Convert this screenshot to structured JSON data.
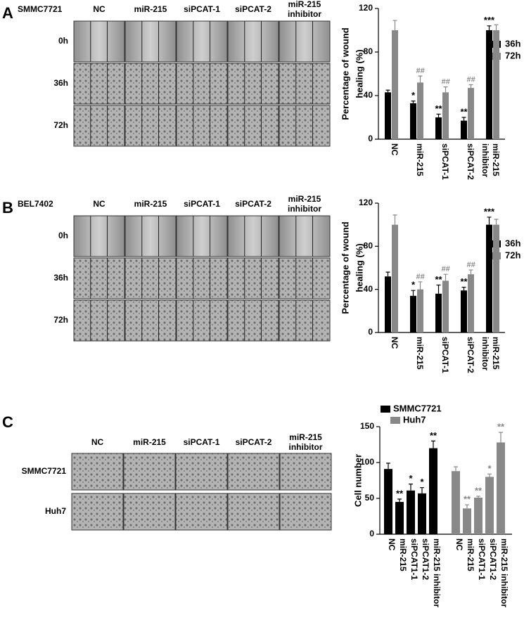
{
  "panels": [
    {
      "letter": "A",
      "cell_line": "SMMC7721",
      "columns": [
        "NC",
        "miR-215",
        "siPCAT-1",
        "siPCAT-2",
        [
          "miR-215",
          "inhibitor"
        ]
      ],
      "rows": [
        "0h",
        "36h",
        "72h"
      ]
    },
    {
      "letter": "B",
      "cell_line": "BEL7402",
      "columns": [
        "NC",
        "miR-215",
        "siPCAT-1",
        "siPCAT-2",
        [
          "miR-215",
          "inhibitor"
        ]
      ],
      "rows": [
        "0h",
        "36h",
        "72h"
      ]
    },
    {
      "letter": "C",
      "columns": [
        "NC",
        "miR-215",
        "siPCAT-1",
        "siPCAT-2",
        [
          "miR-215",
          "inhibitor"
        ]
      ],
      "rows": [
        "SMMC7721",
        "Huh7"
      ]
    }
  ],
  "chart_data": [
    {
      "type": "grouped_bar",
      "ylabel": [
        "Percentage of wound",
        "healing (%)"
      ],
      "categories": [
        "NC",
        "miR-215",
        "siPCAT-1",
        "siPCAT-2",
        [
          "miR-215",
          "inhibitor"
        ]
      ],
      "series": [
        {
          "name": "36h",
          "color": "#000000",
          "values": [
            43,
            33,
            20,
            17,
            100
          ],
          "errors": [
            2,
            2,
            3,
            3,
            4
          ],
          "annotations": [
            null,
            "*",
            "**",
            "**",
            "***"
          ]
        },
        {
          "name": "72h",
          "color": "#888888",
          "values": [
            100,
            52,
            43,
            47,
            100
          ],
          "errors": [
            9,
            6,
            5,
            3,
            5
          ],
          "annotations": [
            null,
            "##",
            "##",
            "##",
            null
          ]
        }
      ],
      "ylim": [
        0,
        120
      ],
      "yticks": [
        0,
        40,
        80,
        120
      ]
    },
    {
      "type": "grouped_bar",
      "ylabel": [
        "Percentage of wound",
        "healing (%)"
      ],
      "categories": [
        "NC",
        "miR-215",
        "siPCAT-1",
        "siPCAT-2",
        [
          "miR-215",
          "inhibitor"
        ]
      ],
      "series": [
        {
          "name": "36h",
          "color": "#000000",
          "values": [
            52,
            34,
            36,
            39,
            100
          ],
          "errors": [
            4,
            5,
            8,
            3,
            7
          ],
          "annotations": [
            null,
            "*",
            "**",
            "**",
            "***"
          ]
        },
        {
          "name": "72h",
          "color": "#888888",
          "values": [
            100,
            40,
            48,
            54,
            100
          ],
          "errors": [
            9,
            7,
            6,
            4,
            5
          ],
          "annotations": [
            null,
            "##",
            "##",
            "##",
            null
          ]
        }
      ],
      "ylim": [
        0,
        120
      ],
      "yticks": [
        0,
        40,
        80,
        120
      ]
    },
    {
      "type": "bar",
      "ylabel": [
        "Cell number"
      ],
      "categories": [
        "NC",
        "miR-215",
        "siPCAT1-1",
        "siPCAT1-2",
        "miR-215 inhibitor",
        "NC",
        "miR-215",
        "siPCAT1-1",
        "siPCAT1-2",
        "miR-215 inhibitor"
      ],
      "series": [
        {
          "name": "SMMC7721",
          "color": "#000000",
          "values": [
            91,
            45,
            61,
            57,
            120,
            null,
            null,
            null,
            null,
            null
          ],
          "errors": [
            8,
            4,
            9,
            8,
            10,
            null,
            null,
            null,
            null,
            null
          ],
          "annotations": [
            null,
            "**",
            "*",
            "*",
            "**",
            null,
            null,
            null,
            null,
            null
          ]
        },
        {
          "name": "Huh7",
          "color": "#888888",
          "values": [
            null,
            null,
            null,
            null,
            null,
            88,
            36,
            51,
            80,
            128
          ],
          "errors": [
            null,
            null,
            null,
            null,
            null,
            6,
            5,
            2,
            4,
            14
          ],
          "annotations": [
            null,
            null,
            null,
            null,
            null,
            null,
            "**",
            "**",
            "*",
            "**"
          ]
        }
      ],
      "ylim": [
        0,
        150
      ],
      "yticks": [
        0,
        50,
        100,
        150
      ]
    }
  ]
}
